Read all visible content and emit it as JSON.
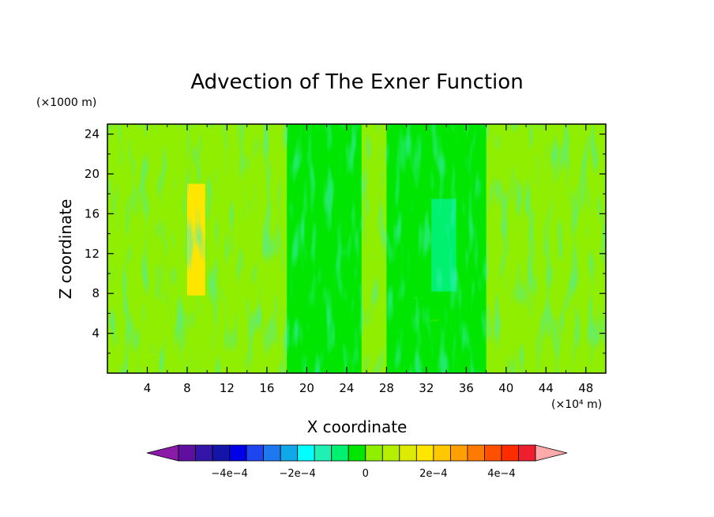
{
  "chart_data": {
    "type": "heatmap",
    "title": "Advection of The Exner Function",
    "xlabel": "X coordinate",
    "ylabel": "Z coordinate",
    "x_unit": "(×10⁴ m)",
    "y_unit": "(×1000 m)",
    "xlim": [
      0,
      50
    ],
    "ylim": [
      0,
      25
    ],
    "x_ticks": [
      4,
      8,
      12,
      16,
      20,
      24,
      28,
      32,
      36,
      40,
      44,
      48
    ],
    "y_ticks": [
      4,
      8,
      12,
      16,
      20,
      24
    ],
    "x_tick_labels": [
      "4",
      "8",
      "12",
      "16",
      "20",
      "24",
      "28",
      "32",
      "36",
      "40",
      "44",
      "48"
    ],
    "y_tick_labels": [
      "4",
      "8",
      "12",
      "16",
      "20",
      "24"
    ],
    "field_regions": [
      {
        "x": [
          0,
          50
        ],
        "z": [
          0,
          25
        ],
        "value": 0
      },
      {
        "x": [
          18,
          25.5
        ],
        "z": [
          0,
          25
        ],
        "value": -5e-05
      },
      {
        "x": [
          28,
          38
        ],
        "z": [
          0,
          25
        ],
        "value": -5e-05
      },
      {
        "x": [
          8,
          9.8
        ],
        "z": [
          7.8,
          19
        ],
        "value": 0.00015
      },
      {
        "x": [
          32.5,
          35
        ],
        "z": [
          8.2,
          17.5
        ],
        "value": -0.0001
      }
    ],
    "colorbar": {
      "levels": [
        -0.00055,
        -0.0005,
        -0.00045,
        -0.0004,
        -0.00035,
        -0.0003,
        -0.00025,
        -0.0002,
        -0.00015,
        -0.0001,
        -5e-05,
        0,
        5e-05,
        0.0001,
        0.00015,
        0.0002,
        0.00025,
        0.0003,
        0.00035,
        0.0004,
        0.00045,
        0.0005
      ],
      "colors": [
        "#8b1aa8",
        "#5f0fa0",
        "#3316a8",
        "#1414a8",
        "#0000e8",
        "#1e46f0",
        "#1e78f0",
        "#10a8e8",
        "#00ffff",
        "#20f0b4",
        "#00f070",
        "#00e600",
        "#90ee00",
        "#b4f000",
        "#dceb00",
        "#ffe600",
        "#ffc800",
        "#ffa000",
        "#ff7a00",
        "#ff5000",
        "#ff2c00",
        "#ee2030",
        "#ffaaaa"
      ],
      "tick_values": [
        -0.0004,
        -0.0002,
        0,
        0.0002,
        0.0004
      ],
      "tick_labels": [
        "−4e−4",
        "−2e−4",
        "0",
        "2e−4",
        "4e−4"
      ]
    }
  }
}
